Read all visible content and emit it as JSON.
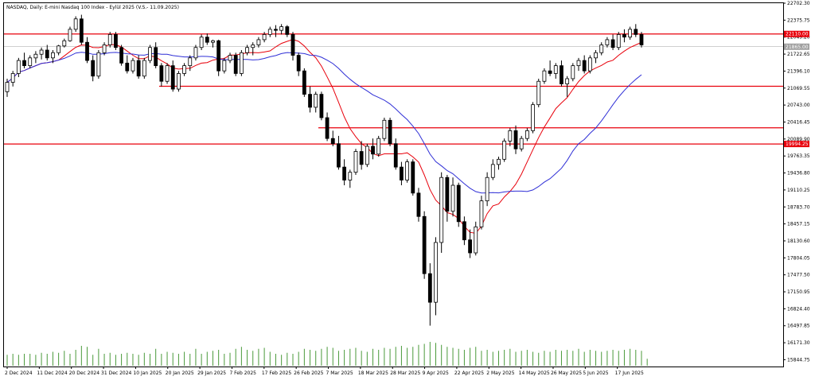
{
  "chart_data": {
    "type": "candlestick",
    "title": "NASDAQ, Daily:  E-mini Nasdaq 100 Index - Eylül 2025 (V.S.- 11.09.2025)",
    "y_ticks": [
      "22702.30",
      "22375.75",
      "22049.20",
      "21722.65",
      "21396.10",
      "21069.55",
      "20743.00",
      "20416.45",
      "20089.90",
      "19763.35",
      "19436.80",
      "19110.25",
      "18783.70",
      "18457.15",
      "18130.60",
      "17804.05",
      "17477.50",
      "17150.95",
      "16824.40",
      "16497.85",
      "16171.30",
      "15844.75"
    ],
    "ylim": [
      15714,
      22702.3
    ],
    "x_ticks": [
      "2 Dec 2024",
      "11 Dec 2024",
      "20 Dec 2024",
      "31 Dec 2024",
      "10 Jan 2025",
      "20 Jan 2025",
      "29 Jan 2025",
      "7 Feb 2025",
      "17 Feb 2025",
      "26 Feb 2025",
      "7 Mar 2025",
      "18 Mar 2025",
      "28 Mar 2025",
      "9 Apr 2025",
      "22 Apr 2025",
      "2 May 2025",
      "14 May 2025",
      "26 May 2025",
      "5 Jun 2025",
      "17 Jun 2025"
    ],
    "levels": [
      {
        "price": 22110.0,
        "label": "22110.00"
      },
      {
        "price": 21104.0,
        "label": ""
      },
      {
        "price": 20305.0,
        "label": ""
      },
      {
        "price": 19994.25,
        "label": "19994.25"
      }
    ],
    "current_price": {
      "price": 21865.0,
      "label": "21865.00"
    },
    "colors": {
      "up": "#ffffff",
      "down": "#000000",
      "ma_fast": "#e8000b",
      "ma_slow": "#2f2fd6",
      "level": "#e8000b",
      "volume": "#4a9a3a",
      "current": "#a0a0a0"
    },
    "candles": [
      [
        21000,
        21250,
        20900,
        21180
      ],
      [
        21180,
        21400,
        21100,
        21350
      ],
      [
        21350,
        21650,
        21280,
        21600
      ],
      [
        21600,
        21750,
        21450,
        21500
      ],
      [
        21500,
        21700,
        21450,
        21650
      ],
      [
        21650,
        21780,
        21550,
        21720
      ],
      [
        21720,
        21850,
        21620,
        21800
      ],
      [
        21800,
        21900,
        21600,
        21650
      ],
      [
        21650,
        21800,
        21550,
        21750
      ],
      [
        21750,
        21900,
        21700,
        21880
      ],
      [
        21880,
        22020,
        21850,
        21980
      ],
      [
        21980,
        22250,
        21960,
        22200
      ],
      [
        22200,
        22450,
        22150,
        22400
      ],
      [
        22400,
        22480,
        21900,
        21950
      ],
      [
        21950,
        22050,
        21550,
        21600
      ],
      [
        21600,
        21700,
        21200,
        21300
      ],
      [
        21300,
        21800,
        21250,
        21750
      ],
      [
        21750,
        21950,
        21700,
        21900
      ],
      [
        21900,
        22150,
        21850,
        22100
      ],
      [
        22100,
        22150,
        21800,
        21850
      ],
      [
        21850,
        21900,
        21500,
        21550
      ],
      [
        21550,
        21700,
        21350,
        21400
      ],
      [
        21400,
        21650,
        21350,
        21600
      ],
      [
        21600,
        21700,
        21250,
        21300
      ],
      [
        21300,
        21650,
        21250,
        21600
      ],
      [
        21600,
        21900,
        21550,
        21850
      ],
      [
        21850,
        21950,
        21450,
        21500
      ],
      [
        21500,
        21550,
        21100,
        21200
      ],
      [
        21200,
        21550,
        21150,
        21500
      ],
      [
        21500,
        21600,
        21000,
        21050
      ],
      [
        21050,
        21400,
        21000,
        21350
      ],
      [
        21350,
        21550,
        21300,
        21500
      ],
      [
        21500,
        21700,
        21400,
        21650
      ],
      [
        21650,
        21900,
        21600,
        21850
      ],
      [
        21850,
        22100,
        21800,
        22050
      ],
      [
        22050,
        22120,
        21900,
        21950
      ],
      [
        21950,
        22000,
        21850,
        21980
      ],
      [
        21980,
        22000,
        21300,
        21400
      ],
      [
        21400,
        21650,
        21350,
        21600
      ],
      [
        21600,
        21750,
        21550,
        21700
      ],
      [
        21700,
        21750,
        21300,
        21350
      ],
      [
        21350,
        21800,
        21300,
        21750
      ],
      [
        21750,
        21900,
        21700,
        21850
      ],
      [
        21850,
        21950,
        21700,
        21900
      ],
      [
        21900,
        22050,
        21850,
        22000
      ],
      [
        22000,
        22150,
        21950,
        22100
      ],
      [
        22100,
        22250,
        22050,
        22200
      ],
      [
        22200,
        22280,
        22050,
        22180
      ],
      [
        22180,
        22300,
        22100,
        22250
      ],
      [
        22250,
        22280,
        22050,
        22100
      ],
      [
        22100,
        22150,
        21600,
        21700
      ],
      [
        21700,
        21750,
        21300,
        21400
      ],
      [
        21400,
        21450,
        20900,
        20950
      ],
      [
        20950,
        21100,
        20600,
        20700
      ],
      [
        20700,
        21000,
        20600,
        20950
      ],
      [
        20950,
        21000,
        20450,
        20500
      ],
      [
        20500,
        20600,
        20050,
        20100
      ],
      [
        20100,
        20250,
        19950,
        20000
      ],
      [
        20000,
        20150,
        19500,
        19550
      ],
      [
        19550,
        19700,
        19200,
        19300
      ],
      [
        19300,
        19500,
        19150,
        19450
      ],
      [
        19450,
        19900,
        19400,
        19850
      ],
      [
        19850,
        20050,
        19500,
        19600
      ],
      [
        19600,
        20000,
        19550,
        19950
      ],
      [
        19950,
        20100,
        19700,
        19800
      ],
      [
        19800,
        20150,
        19750,
        20100
      ],
      [
        20100,
        20500,
        20050,
        20450
      ],
      [
        20450,
        20500,
        19950,
        20000
      ],
      [
        20000,
        20100,
        19500,
        19550
      ],
      [
        19550,
        19650,
        19200,
        19300
      ],
      [
        19300,
        19700,
        19250,
        19650
      ],
      [
        19650,
        19700,
        19000,
        19050
      ],
      [
        19050,
        19150,
        18500,
        18600
      ],
      [
        18600,
        18700,
        17400,
        17500
      ],
      [
        17500,
        17700,
        16500,
        16950
      ],
      [
        16950,
        18200,
        16700,
        18100
      ],
      [
        18100,
        19450,
        17900,
        19350
      ],
      [
        19350,
        19400,
        18500,
        18700
      ],
      [
        18700,
        19350,
        18600,
        19200
      ],
      [
        19200,
        19250,
        18400,
        18500
      ],
      [
        18500,
        18600,
        18050,
        18150
      ],
      [
        18150,
        18350,
        17800,
        17900
      ],
      [
        17900,
        18500,
        17850,
        18400
      ],
      [
        18400,
        19000,
        18350,
        18900
      ],
      [
        18900,
        19450,
        18800,
        19350
      ],
      [
        19350,
        19700,
        19300,
        19600
      ],
      [
        19600,
        19750,
        19500,
        19700
      ],
      [
        19700,
        20100,
        19650,
        20050
      ],
      [
        20050,
        20300,
        19950,
        20250
      ],
      [
        20250,
        20350,
        19800,
        19900
      ],
      [
        19900,
        20150,
        19850,
        20100
      ],
      [
        20100,
        20300,
        20050,
        20250
      ],
      [
        20250,
        20800,
        20200,
        20750
      ],
      [
        20750,
        21250,
        20700,
        21200
      ],
      [
        21200,
        21450,
        21150,
        21400
      ],
      [
        21400,
        21600,
        21300,
        21350
      ],
      [
        21350,
        21550,
        21250,
        21500
      ],
      [
        21500,
        21600,
        21100,
        21150
      ],
      [
        21150,
        21300,
        20900,
        21250
      ],
      [
        21250,
        21550,
        21200,
        21500
      ],
      [
        21500,
        21650,
        21400,
        21600
      ],
      [
        21600,
        21700,
        21350,
        21400
      ],
      [
        21400,
        21700,
        21350,
        21650
      ],
      [
        21650,
        21800,
        21550,
        21750
      ],
      [
        21750,
        21950,
        21700,
        21900
      ],
      [
        21900,
        22050,
        21850,
        22000
      ],
      [
        22000,
        22100,
        21800,
        21850
      ],
      [
        21850,
        22150,
        21800,
        22100
      ],
      [
        22100,
        22200,
        21950,
        22050
      ],
      [
        22050,
        22250,
        22000,
        22200
      ],
      [
        22200,
        22300,
        22050,
        22100
      ],
      [
        22100,
        22150,
        21850,
        21900
      ]
    ],
    "volumes": [
      0.55,
      0.6,
      0.55,
      0.6,
      0.6,
      0.55,
      0.65,
      0.6,
      0.7,
      0.65,
      0.75,
      0.6,
      0.8,
      1.0,
      0.95,
      0.55,
      0.85,
      0.6,
      0.65,
      0.55,
      0.6,
      0.65,
      0.6,
      0.55,
      0.65,
      0.6,
      0.85,
      0.6,
      0.7,
      0.65,
      0.6,
      0.7,
      0.6,
      0.85,
      0.6,
      0.7,
      0.75,
      0.8,
      0.6,
      0.65,
      0.85,
      0.95,
      0.8,
      0.75,
      0.85,
      0.9,
      0.7,
      0.6,
      0.55,
      0.65,
      0.6,
      0.7,
      0.85,
      0.8,
      0.75,
      0.85,
      0.95,
      0.9,
      0.75,
      0.8,
      0.85,
      0.9,
      0.75,
      0.7,
      0.85,
      0.8,
      0.9,
      0.85,
      0.95,
      1.0,
      0.9,
      0.95,
      1.05,
      1.1,
      1.2,
      1.15,
      1.05,
      0.95,
      0.9,
      0.85,
      0.8,
      0.9,
      0.95,
      0.75,
      0.8,
      0.7,
      0.75,
      0.8,
      0.85,
      0.7,
      0.75,
      0.8,
      0.7,
      0.65,
      0.75,
      0.7,
      0.8,
      0.75,
      0.8,
      0.75,
      0.85,
      0.7,
      0.8,
      0.75,
      0.7,
      0.75,
      0.8,
      0.75,
      0.8,
      0.85,
      0.8,
      0.75,
      0.35
    ]
  }
}
